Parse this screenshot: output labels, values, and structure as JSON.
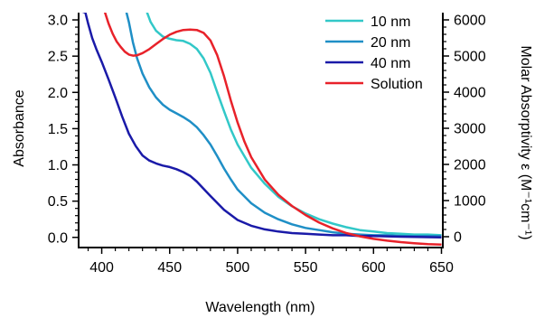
{
  "chart_data": {
    "type": "line",
    "xlabel": "Wavelength (nm)",
    "ylabel": "Absorbance",
    "y2label": "Molar Absorptivity ε (M⁻¹cm⁻¹)",
    "xlim": [
      383,
      651
    ],
    "ylim": [
      -0.14,
      3.1
    ],
    "y2lim": [
      -300,
      6200
    ],
    "xticks": [
      "400",
      "450",
      "500",
      "550",
      "600",
      "650"
    ],
    "yticks": [
      "0.0",
      "0.5",
      "1.0",
      "1.5",
      "2.0",
      "2.5",
      "3.0"
    ],
    "y2ticks": [
      "0",
      "1000",
      "2000",
      "3000",
      "4000",
      "5000",
      "6000"
    ],
    "grid": false,
    "legend_position": "top-right",
    "series": [
      {
        "name": "10 nm",
        "color": "#32C8C8",
        "axis": "left",
        "x": [
          433,
          436,
          440,
          445,
          450,
          455,
          460,
          465,
          470,
          475,
          480,
          485,
          490,
          495,
          500,
          510,
          520,
          530,
          540,
          550,
          560,
          570,
          580,
          590,
          600,
          610,
          620,
          630,
          640,
          650
        ],
        "y": [
          3.12,
          2.97,
          2.85,
          2.77,
          2.74,
          2.72,
          2.71,
          2.67,
          2.6,
          2.47,
          2.27,
          2.0,
          1.74,
          1.49,
          1.28,
          0.96,
          0.74,
          0.56,
          0.43,
          0.33,
          0.25,
          0.19,
          0.14,
          0.1,
          0.08,
          0.06,
          0.05,
          0.04,
          0.04,
          0.03
        ]
      },
      {
        "name": "20 nm",
        "color": "#1F8FC6",
        "axis": "left",
        "x": [
          418,
          420,
          423,
          426,
          430,
          435,
          440,
          445,
          450,
          455,
          460,
          465,
          470,
          475,
          480,
          485,
          490,
          495,
          500,
          510,
          520,
          530,
          540,
          550,
          560,
          570,
          580,
          590,
          600,
          610,
          620,
          630,
          640,
          650
        ],
        "y": [
          3.12,
          2.97,
          2.69,
          2.47,
          2.26,
          2.07,
          1.93,
          1.83,
          1.76,
          1.71,
          1.66,
          1.6,
          1.52,
          1.41,
          1.28,
          1.12,
          0.95,
          0.8,
          0.66,
          0.47,
          0.34,
          0.25,
          0.18,
          0.13,
          0.1,
          0.07,
          0.05,
          0.04,
          0.03,
          0.03,
          0.02,
          0.02,
          0.02,
          0.02
        ]
      },
      {
        "name": "40 nm",
        "color": "#1A1AA8",
        "axis": "left",
        "x": [
          385,
          388,
          390,
          393,
          396,
          400,
          405,
          410,
          415,
          420,
          425,
          430,
          435,
          440,
          445,
          450,
          455,
          460,
          465,
          470,
          475,
          480,
          490,
          500,
          510,
          520,
          530,
          540,
          550,
          560,
          570,
          580,
          590,
          600,
          620,
          650
        ],
        "y": [
          3.12,
          3.1,
          2.95,
          2.75,
          2.6,
          2.42,
          2.18,
          1.93,
          1.67,
          1.43,
          1.26,
          1.13,
          1.06,
          1.02,
          0.99,
          0.97,
          0.94,
          0.9,
          0.85,
          0.77,
          0.67,
          0.57,
          0.38,
          0.24,
          0.16,
          0.11,
          0.08,
          0.06,
          0.05,
          0.04,
          0.03,
          0.03,
          0.02,
          0.02,
          0.01,
          0.0
        ]
      },
      {
        "name": "Solution",
        "color": "#E8222A",
        "axis": "right",
        "x": [
          402,
          405,
          408,
          411,
          414,
          417,
          420,
          423,
          426,
          430,
          435,
          440,
          445,
          450,
          455,
          460,
          465,
          470,
          475,
          480,
          485,
          490,
          495,
          500,
          505,
          510,
          520,
          530,
          540,
          550,
          560,
          570,
          580,
          590,
          600,
          610,
          620,
          630,
          640,
          650
        ],
        "y": [
          6250,
          5900,
          5620,
          5400,
          5250,
          5120,
          5040,
          5010,
          5020,
          5080,
          5190,
          5330,
          5470,
          5590,
          5670,
          5720,
          5730,
          5720,
          5640,
          5430,
          5020,
          4440,
          3770,
          3160,
          2630,
          2200,
          1580,
          1160,
          850,
          600,
          390,
          230,
          100,
          10,
          -60,
          -110,
          -150,
          -180,
          -205,
          -220
        ]
      }
    ]
  }
}
